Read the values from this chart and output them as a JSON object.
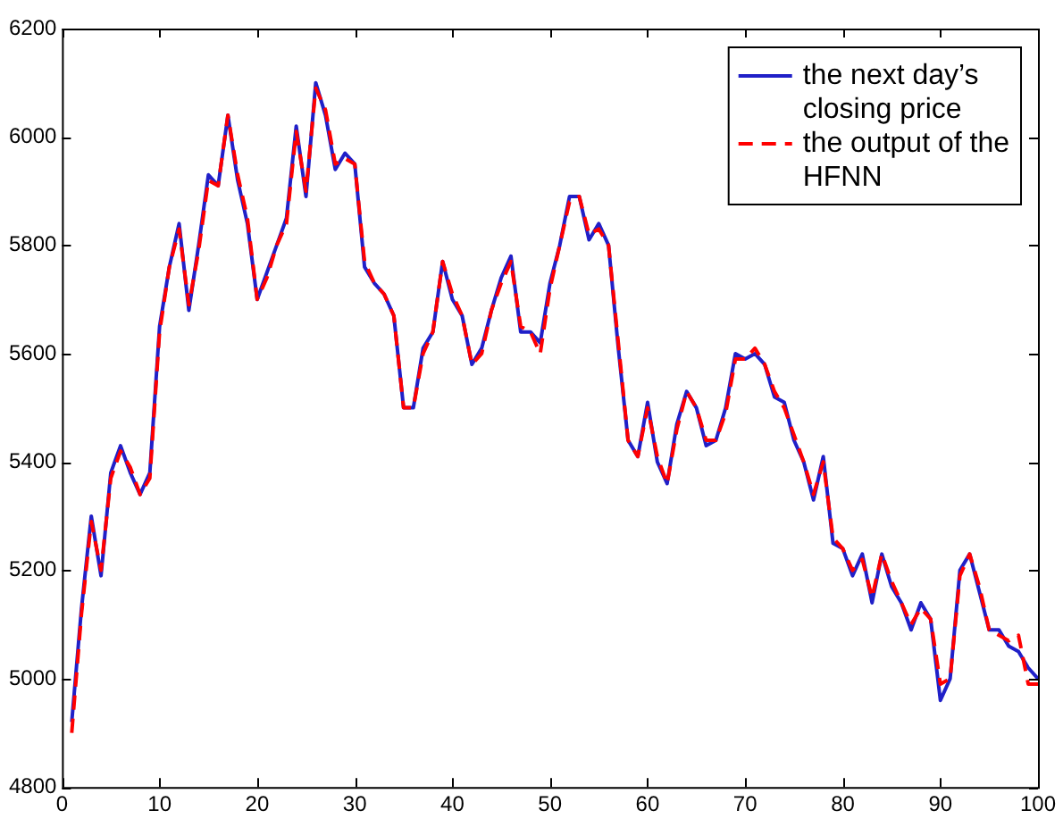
{
  "chart_data": {
    "type": "line",
    "x": [
      1,
      2,
      3,
      4,
      5,
      6,
      7,
      8,
      9,
      10,
      11,
      12,
      13,
      14,
      15,
      16,
      17,
      18,
      19,
      20,
      21,
      22,
      23,
      24,
      25,
      26,
      27,
      28,
      29,
      30,
      31,
      32,
      33,
      34,
      35,
      36,
      37,
      38,
      39,
      40,
      41,
      42,
      43,
      44,
      45,
      46,
      47,
      48,
      49,
      50,
      51,
      52,
      53,
      54,
      55,
      56,
      57,
      58,
      59,
      60,
      61,
      62,
      63,
      64,
      65,
      66,
      67,
      68,
      69,
      70,
      71,
      72,
      73,
      74,
      75,
      76,
      77,
      78,
      79,
      80,
      81,
      82,
      83,
      84,
      85,
      86,
      87,
      88,
      89,
      90,
      91,
      92,
      93,
      94,
      95,
      96,
      97,
      98,
      99,
      100
    ],
    "series": [
      {
        "name": "the next day’s closing price",
        "color": "#2020c8",
        "line_style": "solid",
        "values": [
          4920,
          5130,
          5300,
          5190,
          5380,
          5430,
          5380,
          5340,
          5380,
          5650,
          5760,
          5840,
          5680,
          5800,
          5930,
          5910,
          6040,
          5920,
          5840,
          5700,
          5750,
          5800,
          5850,
          6020,
          5890,
          6100,
          6040,
          5940,
          5970,
          5950,
          5760,
          5730,
          5710,
          5670,
          5500,
          5500,
          5610,
          5640,
          5770,
          5700,
          5670,
          5580,
          5610,
          5680,
          5740,
          5780,
          5640,
          5640,
          5620,
          5730,
          5800,
          5890,
          5890,
          5810,
          5840,
          5800,
          5610,
          5440,
          5410,
          5510,
          5400,
          5360,
          5470,
          5530,
          5500,
          5430,
          5440,
          5500,
          5600,
          5590,
          5600,
          5580,
          5520,
          5510,
          5440,
          5400,
          5330,
          5410,
          5250,
          5240,
          5190,
          5230,
          5140,
          5230,
          5170,
          5140,
          5090,
          5140,
          5110,
          4960,
          5000,
          5200,
          5230,
          5160,
          5090,
          5090,
          5060,
          5050,
          5020,
          5000
        ]
      },
      {
        "name": "the output of the HFNN",
        "color": "#ff0000",
        "line_style": "dashed",
        "values": [
          4900,
          5120,
          5290,
          5200,
          5370,
          5420,
          5390,
          5340,
          5370,
          5640,
          5760,
          5830,
          5690,
          5790,
          5920,
          5910,
          6040,
          5930,
          5850,
          5700,
          5740,
          5800,
          5840,
          6010,
          5900,
          6090,
          6050,
          5950,
          5960,
          5950,
          5770,
          5730,
          5710,
          5670,
          5500,
          5500,
          5600,
          5640,
          5770,
          5710,
          5670,
          5580,
          5600,
          5680,
          5730,
          5770,
          5650,
          5640,
          5600,
          5720,
          5800,
          5880,
          5890,
          5820,
          5830,
          5800,
          5620,
          5440,
          5410,
          5500,
          5410,
          5360,
          5460,
          5530,
          5500,
          5440,
          5440,
          5490,
          5590,
          5590,
          5610,
          5580,
          5530,
          5500,
          5450,
          5400,
          5340,
          5400,
          5260,
          5240,
          5200,
          5220,
          5150,
          5230,
          5180,
          5140,
          5100,
          5130,
          5110,
          4990,
          5000,
          5190,
          5230,
          5170,
          5090,
          5080,
          5070,
          5080,
          4990,
          4990
        ]
      }
    ],
    "xlim": [
      0,
      100
    ],
    "xticks": [
      0,
      10,
      20,
      30,
      40,
      50,
      60,
      70,
      80,
      90,
      100
    ],
    "ylim": [
      4800,
      6200
    ],
    "yticks": [
      4800,
      5000,
      5200,
      5400,
      5600,
      5800,
      6000,
      6200
    ],
    "grid": false,
    "legend": "top right",
    "marker": "none"
  }
}
